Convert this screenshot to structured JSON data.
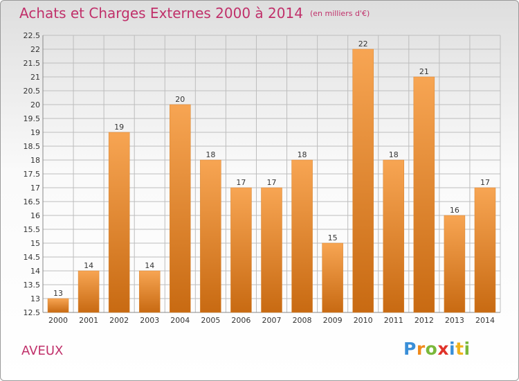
{
  "title": "Achats et Charges Externes 2000 à 2014",
  "subtitle": "(en milliers d'€)",
  "commune": "AVEUX",
  "brand": {
    "letters": [
      {
        "ch": "P",
        "color": "#3a8fd8"
      },
      {
        "ch": "r",
        "color": "#f08a1c"
      },
      {
        "ch": "o",
        "color": "#7ab83a"
      },
      {
        "ch": "x",
        "color": "#e0332a"
      },
      {
        "ch": "i",
        "color": "#3a8fd8"
      },
      {
        "ch": "t",
        "color": "#f0b21c"
      },
      {
        "ch": "i",
        "color": "#7ab83a"
      }
    ]
  },
  "colors": {
    "bar_top": "#f7a553",
    "bar_bottom": "#c86a12",
    "title": "#c0306a",
    "grid": "#bdbdbd"
  },
  "chart_data": {
    "type": "bar",
    "title": "Achats et Charges Externes 2000 à 2014",
    "subtitle": "(en milliers d'€)",
    "categories": [
      "2000",
      "2001",
      "2002",
      "2003",
      "2004",
      "2005",
      "2006",
      "2007",
      "2008",
      "2009",
      "2010",
      "2011",
      "2012",
      "2013",
      "2014"
    ],
    "values": [
      13,
      14,
      19,
      14,
      20,
      18,
      17,
      17,
      18,
      15,
      22,
      18,
      21,
      16,
      17
    ],
    "data_labels": [
      "13",
      "14",
      "19",
      "14",
      "20",
      "18",
      "17",
      "17",
      "18",
      "15",
      "22",
      "18",
      "21",
      "16",
      "17"
    ],
    "ylim": [
      12.5,
      22.5
    ],
    "yticks": [
      "12.5",
      "13",
      "13.5",
      "14",
      "14.5",
      "15",
      "15.5",
      "16",
      "16.5",
      "17",
      "17.5",
      "18",
      "18.5",
      "19",
      "19.5",
      "20",
      "20.5",
      "21",
      "21.5",
      "22",
      "22.5"
    ],
    "grid": true,
    "legend": false
  }
}
